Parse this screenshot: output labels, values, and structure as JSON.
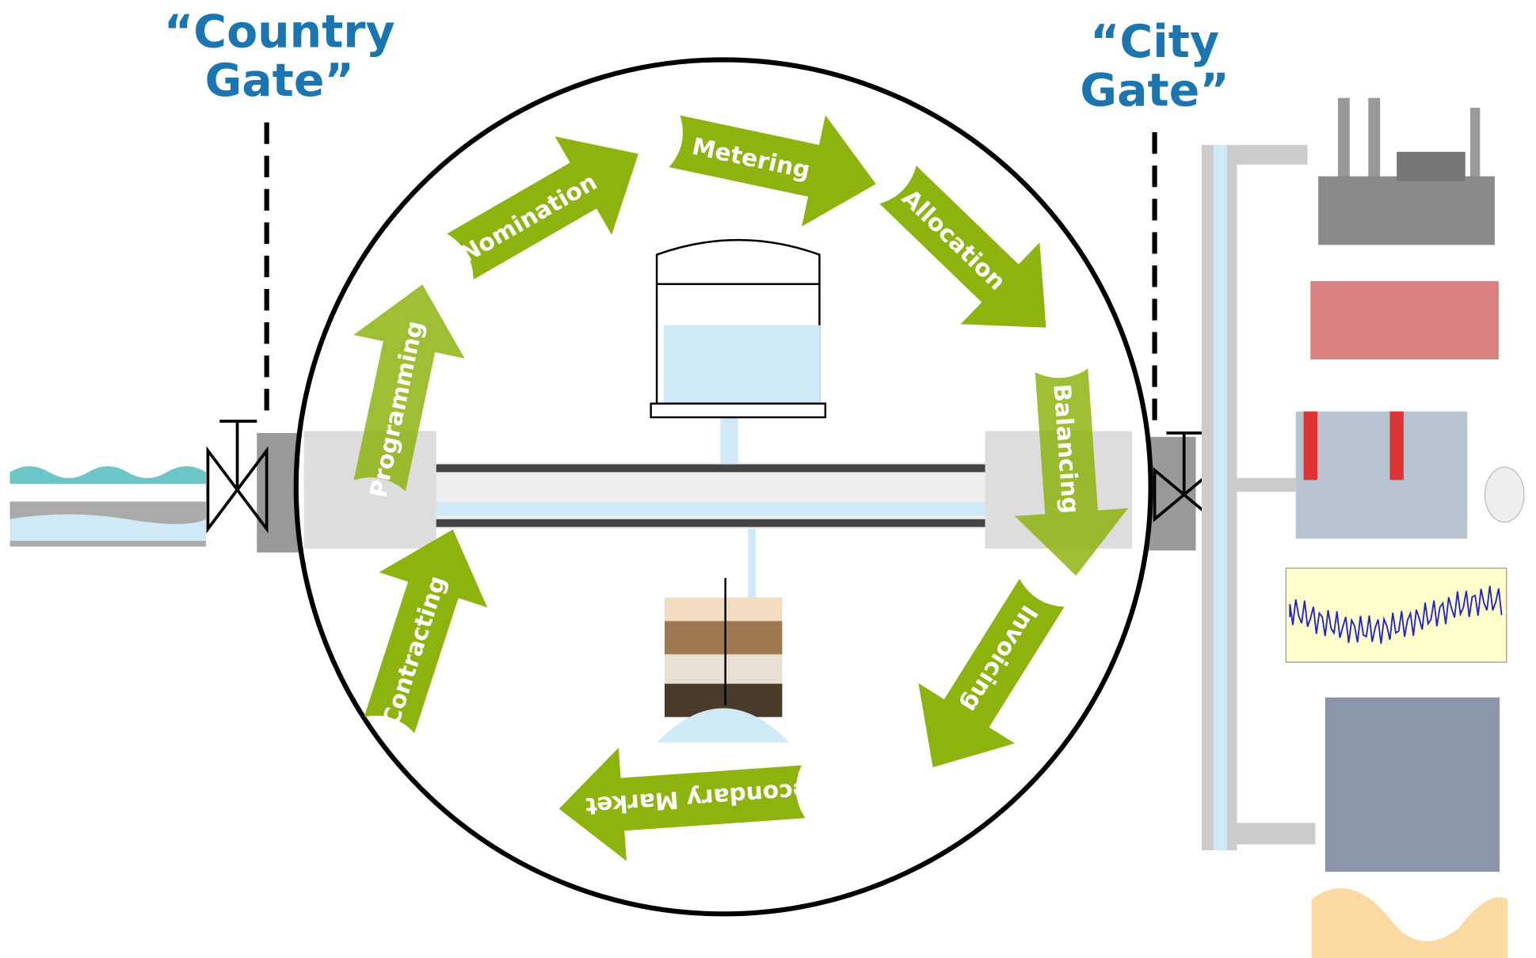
{
  "gates": [
    {
      "lines": [
        "“Country",
        "Gate”"
      ]
    },
    {
      "lines": [
        "“City",
        "Gate”"
      ]
    }
  ],
  "steps": [
    "Contracting",
    "Programming",
    "Nomination",
    "Metering",
    "Allocation",
    "Balancing",
    "Invoicing",
    "Secondary Market"
  ]
}
